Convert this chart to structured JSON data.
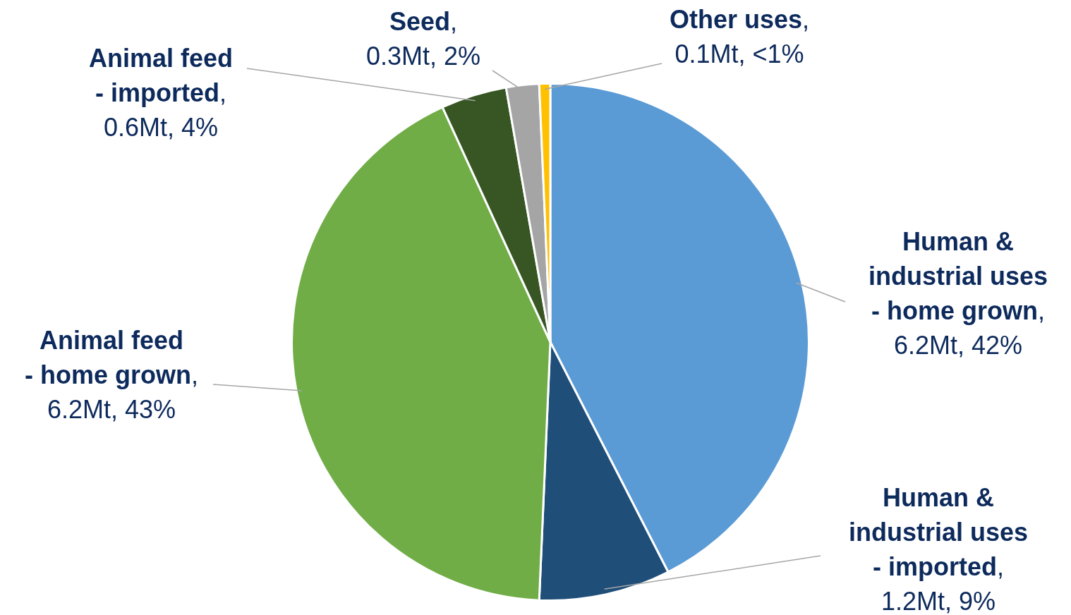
{
  "chart_data": {
    "type": "pie",
    "categories": [
      "Human & industrial uses - home grown",
      "Human & industrial uses - imported",
      "Animal feed - home grown",
      "Animal feed - imported",
      "Seed",
      "Other uses"
    ],
    "values": [
      6.2,
      1.2,
      6.2,
      0.6,
      0.3,
      0.1
    ],
    "value_labels": [
      ", 6.2Mt, 42%",
      ", 1.2Mt, 9%",
      ", 6.2Mt, 43%",
      ", 0.6Mt, 4%",
      ", 0.3Mt, 2%",
      ", 0.1Mt, <1%"
    ],
    "colors": [
      "#5b9bd5",
      "#1f4e79",
      "#70ad47",
      "#375623",
      "#a5a5a5",
      "#ffc000"
    ],
    "legend": false
  }
}
